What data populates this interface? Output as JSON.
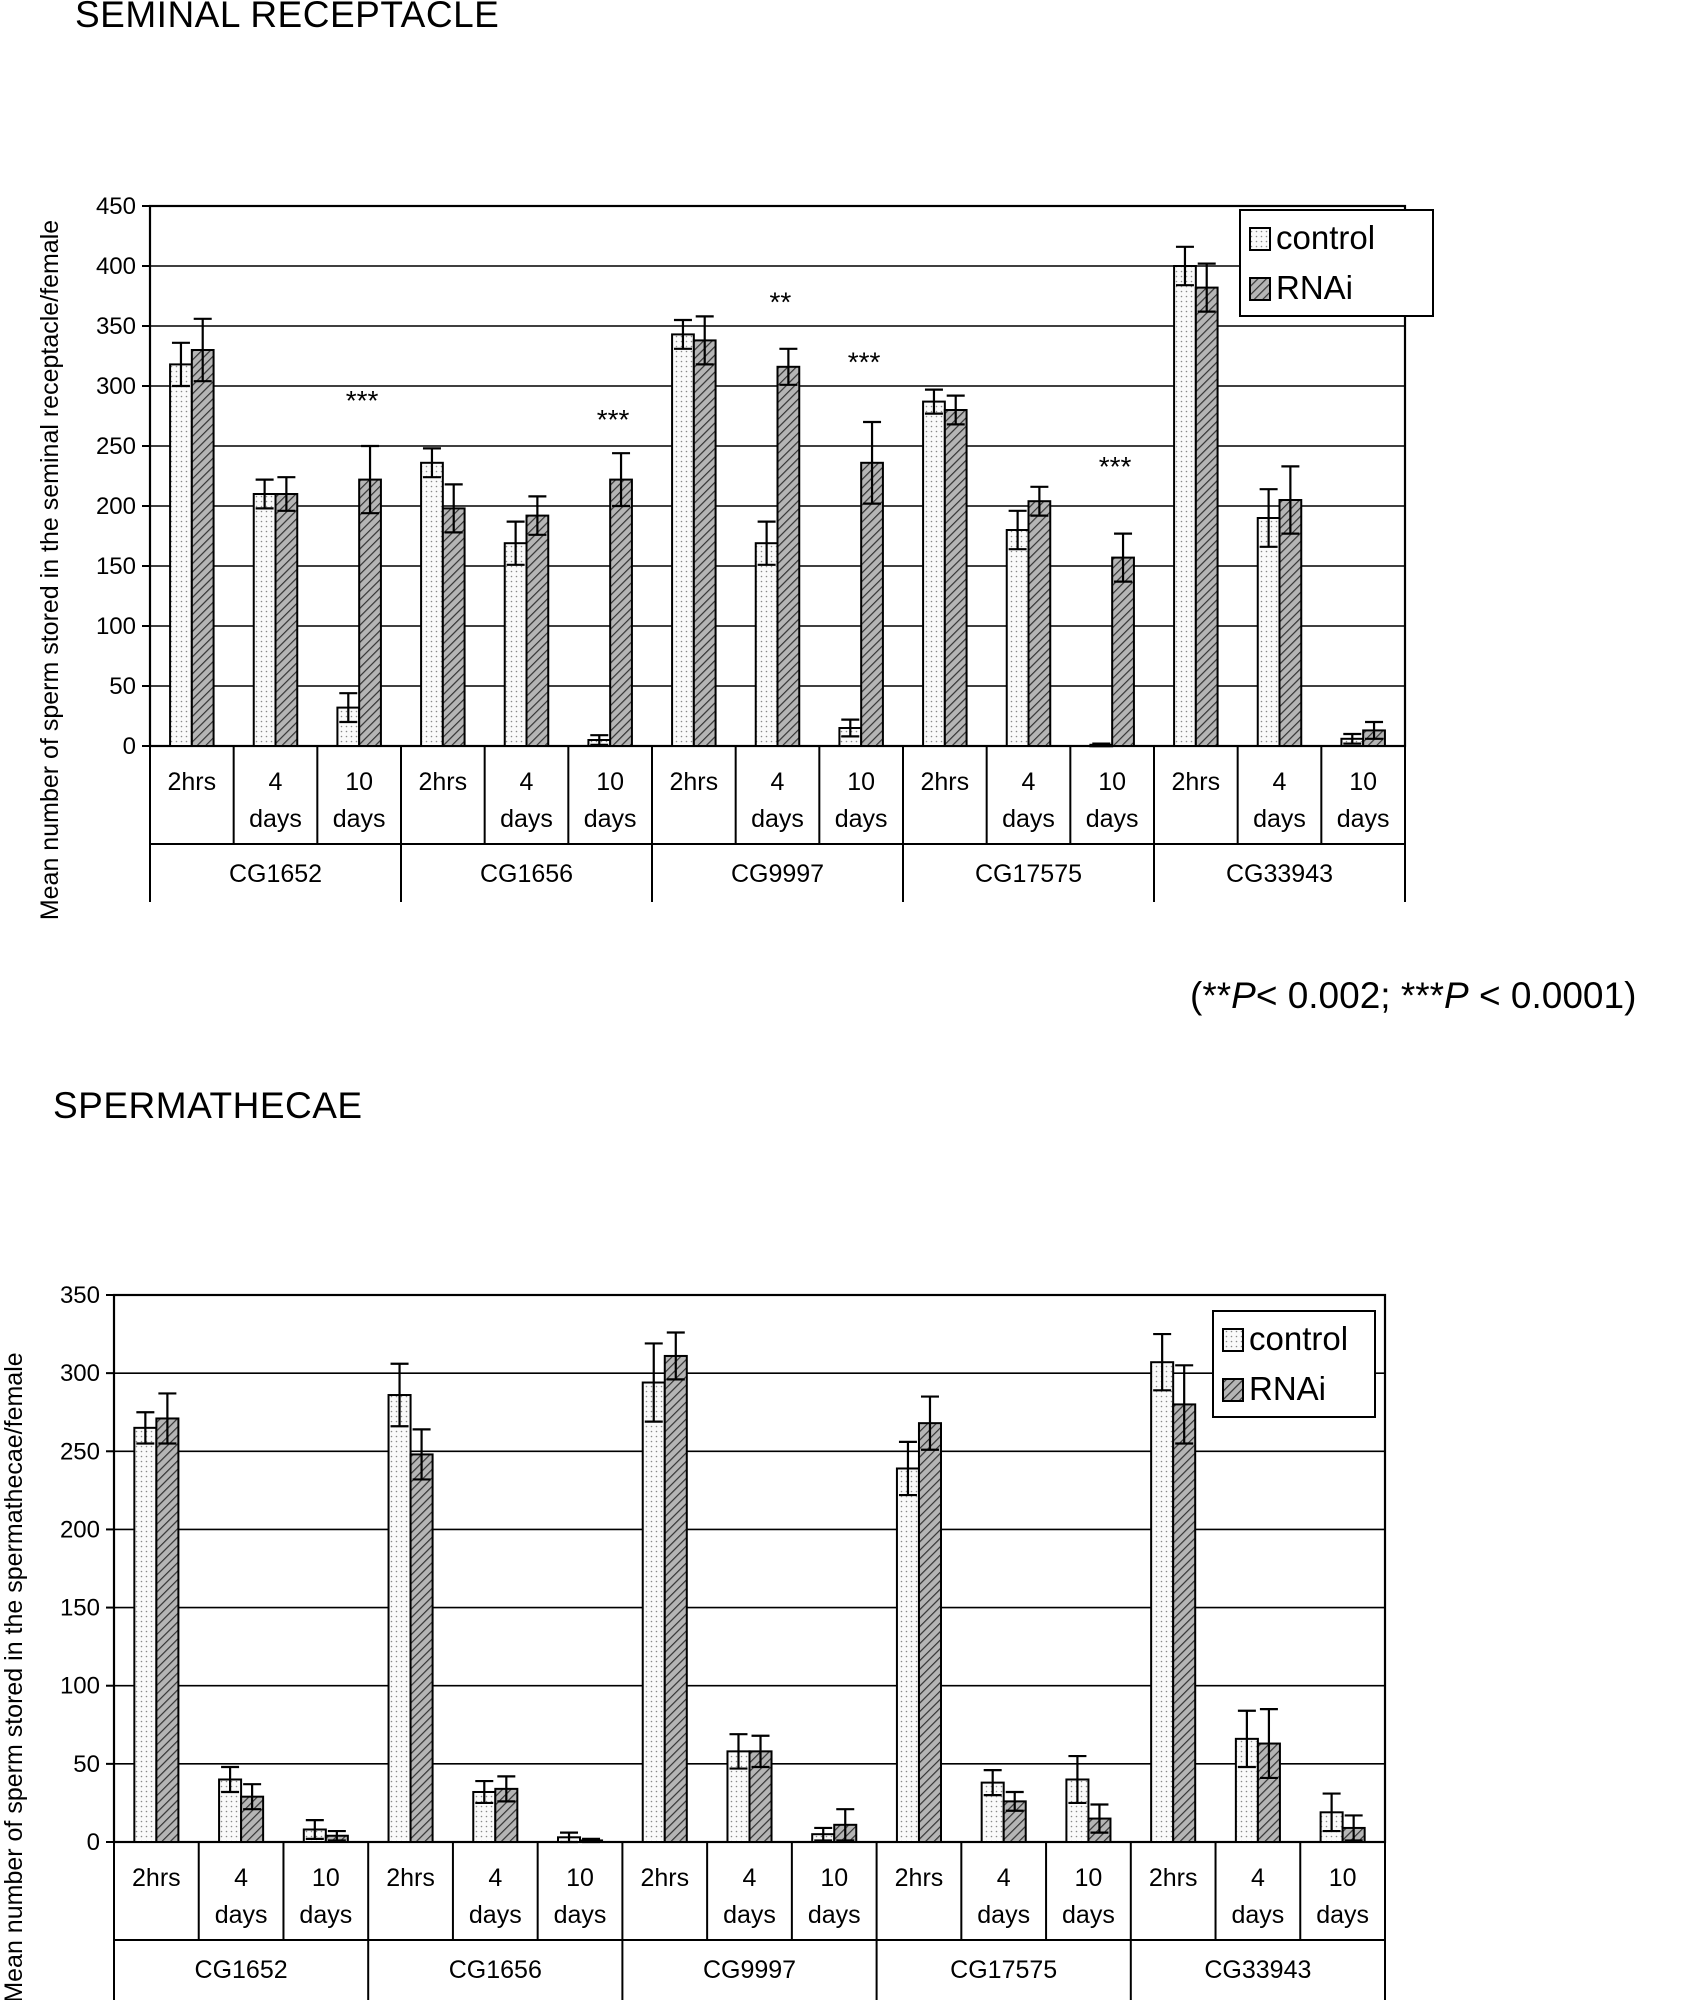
{
  "chart_data": [
    {
      "type": "bar",
      "title": "SEMINAL RECEPTACLE",
      "ylabel": "Mean number of sperm stored in the seminal receptacle/female",
      "ylim": [
        0,
        450
      ],
      "yticks": [
        "0",
        "50",
        "100",
        "150",
        "200",
        "250",
        "300",
        "350",
        "400",
        "450"
      ],
      "grid": true,
      "legend_position": "top-right",
      "genes": [
        "CG1652",
        "CG1656",
        "CG9997",
        "CG17575",
        "CG33943"
      ],
      "timepoints": [
        [
          "2hrs",
          ""
        ],
        [
          "4",
          "days"
        ],
        [
          "10",
          "days"
        ]
      ],
      "series": [
        {
          "name": "control",
          "values": [
            318,
            210,
            32,
            236,
            169,
            5,
            343,
            169,
            15,
            287,
            180,
            1,
            400,
            190,
            6
          ],
          "errors": [
            18,
            12,
            12,
            12,
            18,
            4,
            12,
            18,
            7,
            10,
            16,
            1,
            16,
            24,
            4
          ]
        },
        {
          "name": "RNAi",
          "values": [
            330,
            210,
            222,
            198,
            192,
            222,
            338,
            316,
            236,
            280,
            204,
            157,
            382,
            205,
            13
          ],
          "errors": [
            26,
            14,
            28,
            20,
            16,
            22,
            20,
            15,
            34,
            12,
            12,
            20,
            20,
            28,
            7
          ]
        }
      ],
      "annotations": [
        "***",
        "***",
        "**",
        "***",
        "***"
      ],
      "annotation_positions": [
        {
          "bar": 2,
          "series": "RNAi",
          "value": 280
        },
        {
          "bar": 5,
          "series": "RNAi",
          "value": 264
        },
        {
          "bar": 7,
          "series": "RNAi",
          "value": 362
        },
        {
          "bar": 8,
          "series": "RNAi",
          "value": 312
        },
        {
          "bar": 11,
          "series": "RNAi",
          "value": 225
        }
      ]
    },
    {
      "type": "bar",
      "title": "SPERMATHECAE",
      "ylabel": "Mean number of sperm stored in the spermathecae/female",
      "ylim": [
        0,
        350
      ],
      "yticks": [
        "0",
        "50",
        "100",
        "150",
        "200",
        "250",
        "300",
        "350"
      ],
      "grid": true,
      "legend_position": "top-right",
      "genes": [
        "CG1652",
        "CG1656",
        "CG9997",
        "CG17575",
        "CG33943"
      ],
      "timepoints": [
        [
          "2hrs",
          ""
        ],
        [
          "4",
          "days"
        ],
        [
          "10",
          "days"
        ]
      ],
      "series": [
        {
          "name": "control",
          "values": [
            265,
            40,
            8,
            286,
            32,
            3,
            294,
            58,
            5,
            239,
            38,
            40,
            307,
            66,
            19
          ],
          "errors": [
            10,
            8,
            6,
            20,
            7,
            3,
            25,
            11,
            4,
            17,
            8,
            15,
            18,
            18,
            12
          ]
        },
        {
          "name": "RNAi",
          "values": [
            271,
            29,
            4,
            248,
            34,
            1,
            311,
            58,
            11,
            268,
            26,
            15,
            280,
            63,
            9
          ],
          "errors": [
            16,
            8,
            3,
            16,
            8,
            1,
            15,
            10,
            10,
            17,
            6,
            9,
            25,
            22,
            8
          ]
        }
      ],
      "annotations": [],
      "annotation_positions": []
    }
  ],
  "footnote": {
    "open": "(**",
    "p1": "P",
    "mid": "< 0.002; ***",
    "p2": "P",
    "close": " < 0.0001)"
  },
  "colors": {
    "control_fill": "#f2f2f2",
    "rnai_fill": "#9a9a9a",
    "axis": "#000000",
    "grid": "#000000"
  },
  "legend": {
    "control_label": "control",
    "rnai_label": "RNAi"
  }
}
